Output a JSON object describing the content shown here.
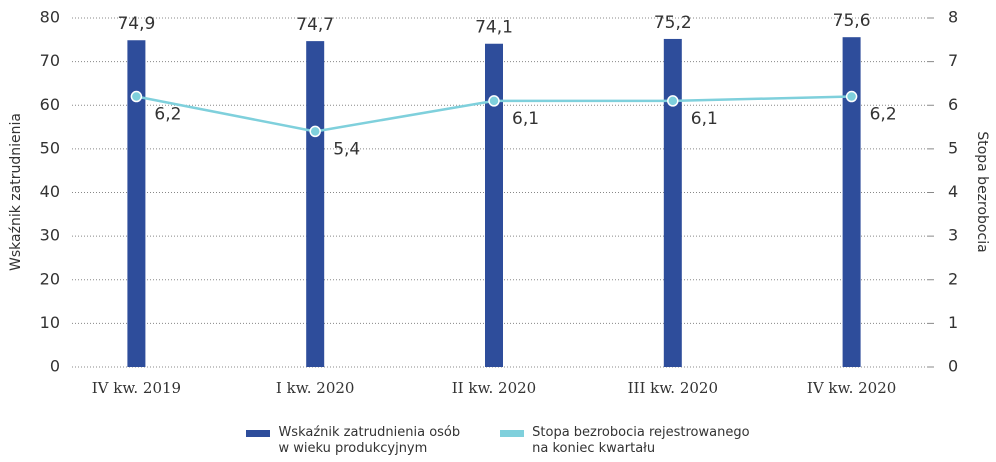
{
  "chart_data": {
    "type": "bar",
    "y_label": "Wskaźnik zatrudnienia",
    "y2_label": "Stopa bezrobocia",
    "categories": [
      "IV kw. 2019",
      "I kw. 2020",
      "II kw. 2020",
      "III kw. 2020",
      "IV kw. 2020"
    ],
    "series": [
      {
        "name": "Wskaźnik zatrudnienia osób\nw wieku produkcyjnym",
        "type": "bar",
        "color": "#2e4d9b",
        "values": [
          74.9,
          74.7,
          74.1,
          75.2,
          75.6
        ],
        "value_labels": [
          "74,9",
          "74,7",
          "74,1",
          "75,2",
          "75,6"
        ]
      },
      {
        "name": "Stopa bezrobocia rejestrowanego\nna koniec kwartału",
        "type": "line",
        "axis": "y2",
        "color": "#7fd0dc",
        "values": [
          6.2,
          5.4,
          6.1,
          6.1,
          6.2
        ],
        "value_labels": [
          "6,2",
          "5,4",
          "6,1",
          "6,1",
          "6,2"
        ]
      }
    ],
    "ylim": [
      0,
      80
    ],
    "yticks": [
      0,
      10,
      20,
      30,
      40,
      50,
      60,
      70,
      80
    ],
    "y2lim": [
      0,
      8
    ],
    "y2ticks": [
      0,
      1,
      2,
      3,
      4,
      5,
      6,
      7,
      8
    ],
    "grid": true
  }
}
